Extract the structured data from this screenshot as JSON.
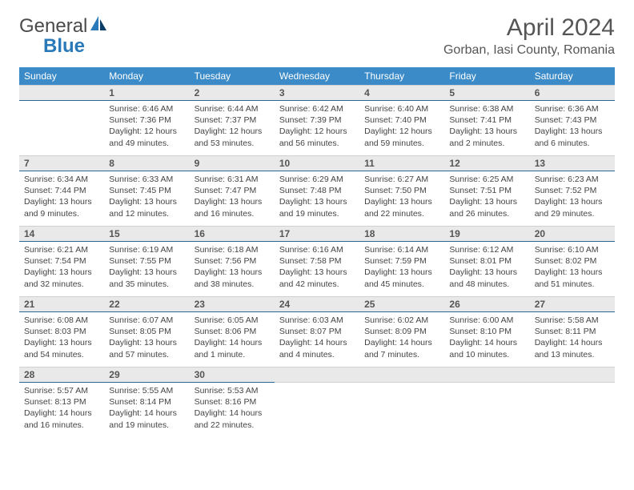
{
  "brand": {
    "name1": "General",
    "name2": "Blue"
  },
  "title": "April 2024",
  "location": "Gorban, Iasi County, Romania",
  "day_headers": [
    "Sunday",
    "Monday",
    "Tuesday",
    "Wednesday",
    "Thursday",
    "Friday",
    "Saturday"
  ],
  "colors": {
    "header_bg": "#3b8bc9",
    "header_text": "#ffffff",
    "daynum_bg": "#e9e9e9",
    "daynum_border": "#2a6a9a",
    "text": "#444444",
    "title_text": "#555555",
    "logo_gray": "#4a4a4a",
    "logo_blue": "#2a7ab9"
  },
  "typography": {
    "title_fontsize": 30,
    "location_fontsize": 16,
    "header_fontsize": 12,
    "daynum_fontsize": 12,
    "body_fontsize": 10.5
  },
  "layout": {
    "cols": 7,
    "rows": 5,
    "leading_blanks": 1,
    "trailing_blanks": 4
  },
  "days": [
    {
      "n": "1",
      "sunrise": "Sunrise: 6:46 AM",
      "sunset": "Sunset: 7:36 PM",
      "daylight": "Daylight: 12 hours and 49 minutes."
    },
    {
      "n": "2",
      "sunrise": "Sunrise: 6:44 AM",
      "sunset": "Sunset: 7:37 PM",
      "daylight": "Daylight: 12 hours and 53 minutes."
    },
    {
      "n": "3",
      "sunrise": "Sunrise: 6:42 AM",
      "sunset": "Sunset: 7:39 PM",
      "daylight": "Daylight: 12 hours and 56 minutes."
    },
    {
      "n": "4",
      "sunrise": "Sunrise: 6:40 AM",
      "sunset": "Sunset: 7:40 PM",
      "daylight": "Daylight: 12 hours and 59 minutes."
    },
    {
      "n": "5",
      "sunrise": "Sunrise: 6:38 AM",
      "sunset": "Sunset: 7:41 PM",
      "daylight": "Daylight: 13 hours and 2 minutes."
    },
    {
      "n": "6",
      "sunrise": "Sunrise: 6:36 AM",
      "sunset": "Sunset: 7:43 PM",
      "daylight": "Daylight: 13 hours and 6 minutes."
    },
    {
      "n": "7",
      "sunrise": "Sunrise: 6:34 AM",
      "sunset": "Sunset: 7:44 PM",
      "daylight": "Daylight: 13 hours and 9 minutes."
    },
    {
      "n": "8",
      "sunrise": "Sunrise: 6:33 AM",
      "sunset": "Sunset: 7:45 PM",
      "daylight": "Daylight: 13 hours and 12 minutes."
    },
    {
      "n": "9",
      "sunrise": "Sunrise: 6:31 AM",
      "sunset": "Sunset: 7:47 PM",
      "daylight": "Daylight: 13 hours and 16 minutes."
    },
    {
      "n": "10",
      "sunrise": "Sunrise: 6:29 AM",
      "sunset": "Sunset: 7:48 PM",
      "daylight": "Daylight: 13 hours and 19 minutes."
    },
    {
      "n": "11",
      "sunrise": "Sunrise: 6:27 AM",
      "sunset": "Sunset: 7:50 PM",
      "daylight": "Daylight: 13 hours and 22 minutes."
    },
    {
      "n": "12",
      "sunrise": "Sunrise: 6:25 AM",
      "sunset": "Sunset: 7:51 PM",
      "daylight": "Daylight: 13 hours and 26 minutes."
    },
    {
      "n": "13",
      "sunrise": "Sunrise: 6:23 AM",
      "sunset": "Sunset: 7:52 PM",
      "daylight": "Daylight: 13 hours and 29 minutes."
    },
    {
      "n": "14",
      "sunrise": "Sunrise: 6:21 AM",
      "sunset": "Sunset: 7:54 PM",
      "daylight": "Daylight: 13 hours and 32 minutes."
    },
    {
      "n": "15",
      "sunrise": "Sunrise: 6:19 AM",
      "sunset": "Sunset: 7:55 PM",
      "daylight": "Daylight: 13 hours and 35 minutes."
    },
    {
      "n": "16",
      "sunrise": "Sunrise: 6:18 AM",
      "sunset": "Sunset: 7:56 PM",
      "daylight": "Daylight: 13 hours and 38 minutes."
    },
    {
      "n": "17",
      "sunrise": "Sunrise: 6:16 AM",
      "sunset": "Sunset: 7:58 PM",
      "daylight": "Daylight: 13 hours and 42 minutes."
    },
    {
      "n": "18",
      "sunrise": "Sunrise: 6:14 AM",
      "sunset": "Sunset: 7:59 PM",
      "daylight": "Daylight: 13 hours and 45 minutes."
    },
    {
      "n": "19",
      "sunrise": "Sunrise: 6:12 AM",
      "sunset": "Sunset: 8:01 PM",
      "daylight": "Daylight: 13 hours and 48 minutes."
    },
    {
      "n": "20",
      "sunrise": "Sunrise: 6:10 AM",
      "sunset": "Sunset: 8:02 PM",
      "daylight": "Daylight: 13 hours and 51 minutes."
    },
    {
      "n": "21",
      "sunrise": "Sunrise: 6:08 AM",
      "sunset": "Sunset: 8:03 PM",
      "daylight": "Daylight: 13 hours and 54 minutes."
    },
    {
      "n": "22",
      "sunrise": "Sunrise: 6:07 AM",
      "sunset": "Sunset: 8:05 PM",
      "daylight": "Daylight: 13 hours and 57 minutes."
    },
    {
      "n": "23",
      "sunrise": "Sunrise: 6:05 AM",
      "sunset": "Sunset: 8:06 PM",
      "daylight": "Daylight: 14 hours and 1 minute."
    },
    {
      "n": "24",
      "sunrise": "Sunrise: 6:03 AM",
      "sunset": "Sunset: 8:07 PM",
      "daylight": "Daylight: 14 hours and 4 minutes."
    },
    {
      "n": "25",
      "sunrise": "Sunrise: 6:02 AM",
      "sunset": "Sunset: 8:09 PM",
      "daylight": "Daylight: 14 hours and 7 minutes."
    },
    {
      "n": "26",
      "sunrise": "Sunrise: 6:00 AM",
      "sunset": "Sunset: 8:10 PM",
      "daylight": "Daylight: 14 hours and 10 minutes."
    },
    {
      "n": "27",
      "sunrise": "Sunrise: 5:58 AM",
      "sunset": "Sunset: 8:11 PM",
      "daylight": "Daylight: 14 hours and 13 minutes."
    },
    {
      "n": "28",
      "sunrise": "Sunrise: 5:57 AM",
      "sunset": "Sunset: 8:13 PM",
      "daylight": "Daylight: 14 hours and 16 minutes."
    },
    {
      "n": "29",
      "sunrise": "Sunrise: 5:55 AM",
      "sunset": "Sunset: 8:14 PM",
      "daylight": "Daylight: 14 hours and 19 minutes."
    },
    {
      "n": "30",
      "sunrise": "Sunrise: 5:53 AM",
      "sunset": "Sunset: 8:16 PM",
      "daylight": "Daylight: 14 hours and 22 minutes."
    }
  ]
}
